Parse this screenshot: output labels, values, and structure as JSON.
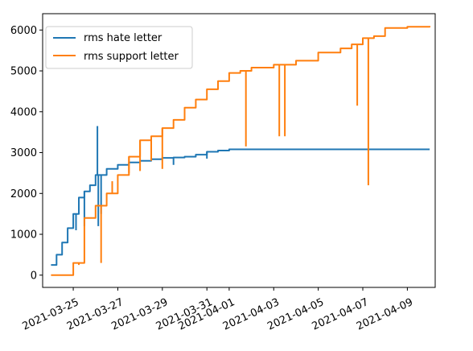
{
  "chart_data": {
    "type": "line",
    "title": "",
    "xlabel": "",
    "ylabel": "",
    "xlim": [
      "2021-03-23 15:00",
      "2021-04-10 06:00"
    ],
    "ylim": [
      -300,
      6400
    ],
    "grid": false,
    "legend_position": "upper-left",
    "x_ticks": [
      "2021-03-25",
      "2021-03-27",
      "2021-03-29",
      "2021-03-31",
      "2021-04-01",
      "2021-04-03",
      "2021-04-05",
      "2021-04-07",
      "2021-04-09"
    ],
    "y_ticks": [
      0,
      1000,
      2000,
      3000,
      4000,
      5000,
      6000
    ],
    "series": [
      {
        "name": "rms hate letter",
        "color": "#1f77b4",
        "x": [
          "2021-03-24 00:00",
          "2021-03-24 06:00",
          "2021-03-24 12:00",
          "2021-03-24 18:00",
          "2021-03-25 00:00",
          "2021-03-25 06:00",
          "2021-03-25 12:00",
          "2021-03-25 18:00",
          "2021-03-26 00:00",
          "2021-03-26 12:00",
          "2021-03-27 00:00",
          "2021-03-27 12:00",
          "2021-03-28 00:00",
          "2021-03-28 12:00",
          "2021-03-29 00:00",
          "2021-03-29 12:00",
          "2021-03-30 00:00",
          "2021-03-30 12:00",
          "2021-03-31 00:00",
          "2021-03-31 12:00",
          "2021-04-01 00:00",
          "2021-04-02 00:00",
          "2021-04-03 00:00",
          "2021-04-04 00:00",
          "2021-04-05 00:00",
          "2021-04-06 00:00",
          "2021-04-07 00:00",
          "2021-04-08 00:00",
          "2021-04-09 00:00",
          "2021-04-10 00:00"
        ],
        "values": [
          250,
          500,
          800,
          1150,
          1500,
          1900,
          2050,
          2200,
          2450,
          2600,
          2700,
          2760,
          2800,
          2840,
          2870,
          2880,
          2900,
          2950,
          3020,
          3050,
          3080,
          3080,
          3080,
          3080,
          3080,
          3080,
          3080,
          3080,
          3080,
          3080
        ],
        "spikes": [
          {
            "x": "2021-03-25 03:00",
            "y": 1100
          },
          {
            "x": "2021-03-25 12:00",
            "y": 1200
          },
          {
            "x": "2021-03-26 02:00",
            "y": 3650
          },
          {
            "x": "2021-03-26 03:00",
            "y": 1200
          },
          {
            "x": "2021-03-26 06:00",
            "y": 1500
          },
          {
            "x": "2021-03-29 12:00",
            "y": 2700
          },
          {
            "x": "2021-03-31 00:00",
            "y": 2850
          }
        ]
      },
      {
        "name": "rms support letter",
        "color": "#ff7f0e",
        "x": [
          "2021-03-24 00:00",
          "2021-03-24 12:00",
          "2021-03-24 18:00",
          "2021-03-25 00:00",
          "2021-03-25 12:00",
          "2021-03-26 00:00",
          "2021-03-26 12:00",
          "2021-03-27 00:00",
          "2021-03-27 12:00",
          "2021-03-28 00:00",
          "2021-03-28 12:00",
          "2021-03-29 00:00",
          "2021-03-29 12:00",
          "2021-03-30 00:00",
          "2021-03-30 12:00",
          "2021-03-31 00:00",
          "2021-03-31 12:00",
          "2021-04-01 00:00",
          "2021-04-01 12:00",
          "2021-04-02 00:00",
          "2021-04-03 00:00",
          "2021-04-04 00:00",
          "2021-04-05 00:00",
          "2021-04-06 00:00",
          "2021-04-06 12:00",
          "2021-04-07 00:00",
          "2021-04-07 12:00",
          "2021-04-08 00:00",
          "2021-04-09 00:00",
          "2021-04-10 00:00"
        ],
        "values": [
          0,
          0,
          0,
          300,
          1400,
          1700,
          2000,
          2450,
          2900,
          3300,
          3400,
          3600,
          3800,
          4100,
          4300,
          4550,
          4750,
          4950,
          5000,
          5080,
          5150,
          5250,
          5450,
          5550,
          5650,
          5800,
          5850,
          6050,
          6080,
          6100
        ],
        "spikes": [
          {
            "x": "2021-03-24 18:00",
            "y": 0
          },
          {
            "x": "2021-03-25 06:00",
            "y": 250
          },
          {
            "x": "2021-03-26 06:00",
            "y": 300
          },
          {
            "x": "2021-03-26 18:00",
            "y": 2300
          },
          {
            "x": "2021-03-27 12:00",
            "y": 2500
          },
          {
            "x": "2021-03-28 00:00",
            "y": 2550
          },
          {
            "x": "2021-03-28 12:00",
            "y": 2800
          },
          {
            "x": "2021-03-29 00:00",
            "y": 2600
          },
          {
            "x": "2021-04-01 18:00",
            "y": 3150
          },
          {
            "x": "2021-04-03 06:00",
            "y": 3400
          },
          {
            "x": "2021-04-03 12:00",
            "y": 3400
          },
          {
            "x": "2021-04-06 18:00",
            "y": 4150
          },
          {
            "x": "2021-04-07 06:00",
            "y": 2200
          }
        ]
      }
    ]
  }
}
